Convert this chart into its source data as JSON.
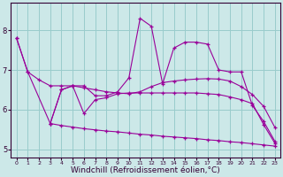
{
  "background_color": "#cce8e8",
  "grid_color": "#99cccc",
  "line_color": "#990099",
  "xlabel": "Windchill (Refroidissement éolien,°C)",
  "xlim": [
    -0.5,
    23.5
  ],
  "ylim": [
    4.8,
    8.7
  ],
  "yticks": [
    5,
    6,
    7,
    8
  ],
  "xticks": [
    0,
    1,
    2,
    3,
    4,
    5,
    6,
    7,
    8,
    9,
    10,
    11,
    12,
    13,
    14,
    15,
    16,
    17,
    18,
    19,
    20,
    21,
    22,
    23
  ],
  "s1_x": [
    0,
    1,
    3,
    4,
    5,
    6,
    7,
    8,
    9,
    10,
    11,
    12,
    13,
    14,
    15,
    16,
    17,
    18,
    19,
    20,
    21,
    22,
    23
  ],
  "s1_y": [
    7.8,
    6.95,
    5.65,
    6.5,
    6.6,
    6.6,
    6.35,
    6.35,
    6.45,
    6.8,
    8.3,
    8.1,
    6.65,
    7.55,
    7.7,
    7.7,
    7.65,
    7.0,
    6.95,
    6.95,
    6.1,
    5.7,
    5.2
  ],
  "s2_x": [
    0,
    1,
    2,
    3,
    4,
    5,
    6,
    7,
    8,
    9,
    10,
    11,
    12,
    13,
    14,
    15,
    16,
    17,
    18,
    19,
    20,
    21,
    22,
    23
  ],
  "s2_y": [
    7.8,
    6.95,
    6.75,
    6.6,
    6.6,
    6.6,
    6.55,
    6.5,
    6.45,
    6.42,
    6.4,
    6.45,
    6.58,
    6.68,
    6.72,
    6.75,
    6.77,
    6.78,
    6.77,
    6.72,
    6.58,
    6.38,
    6.08,
    5.55
  ],
  "s3_x": [
    3,
    4,
    5,
    6,
    7,
    8,
    9,
    10,
    11,
    12,
    13,
    14,
    15,
    16,
    17,
    18,
    19,
    20,
    21,
    22,
    23
  ],
  "s3_y": [
    5.65,
    6.5,
    6.6,
    5.9,
    6.25,
    6.3,
    6.4,
    6.42,
    6.42,
    6.42,
    6.42,
    6.42,
    6.42,
    6.42,
    6.4,
    6.38,
    6.32,
    6.25,
    6.15,
    5.62,
    5.15
  ],
  "s4_x": [
    3,
    4,
    5,
    6,
    7,
    8,
    9,
    10,
    11,
    12,
    13,
    14,
    15,
    16,
    17,
    18,
    19,
    20,
    21,
    22,
    23
  ],
  "s4_y": [
    5.65,
    5.6,
    5.56,
    5.52,
    5.49,
    5.46,
    5.44,
    5.41,
    5.38,
    5.36,
    5.33,
    5.31,
    5.29,
    5.27,
    5.24,
    5.22,
    5.19,
    5.17,
    5.14,
    5.11,
    5.08
  ]
}
